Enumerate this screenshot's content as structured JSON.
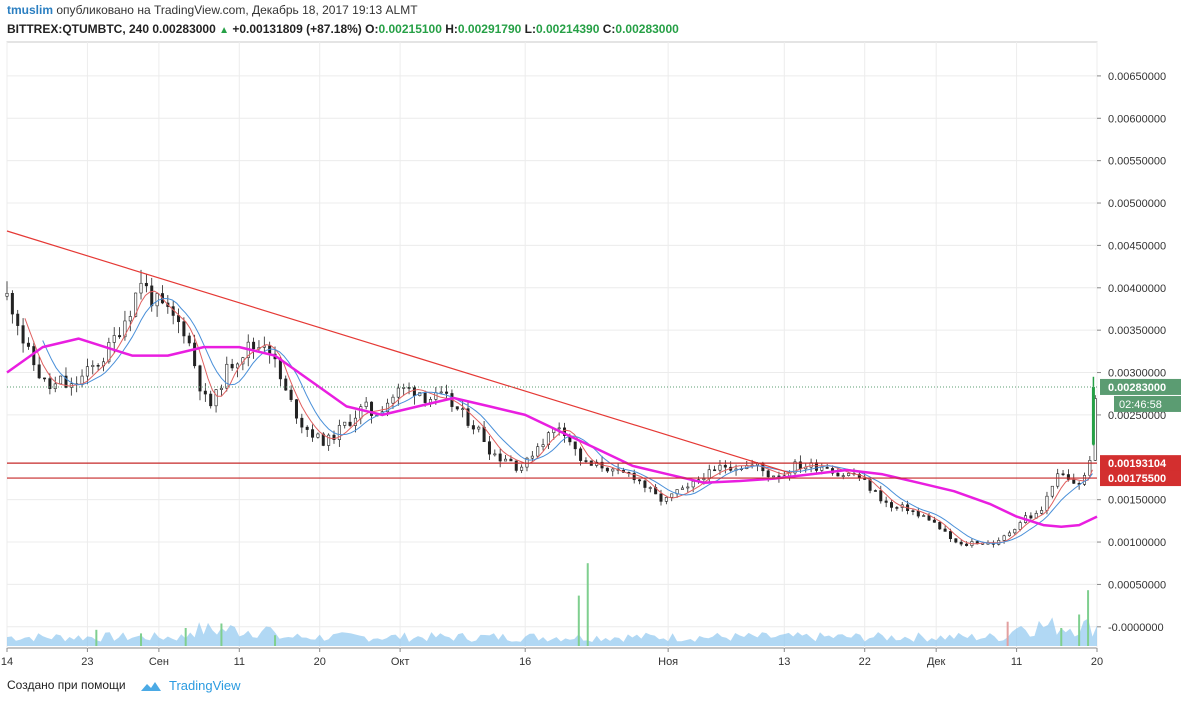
{
  "header": {
    "author": "tmuslim",
    "published_text": "опубликовано на TradingView.com, Декабрь 18, 2017 19:13 ALMT",
    "symbol": "BITTREX:QTUMBTC, 240",
    "last": "0.00283000",
    "change": "+0.00131809 (+87.18%)",
    "o_label": "O:",
    "o_value": "0.00215100",
    "h_label": "H:",
    "h_value": "0.00291790",
    "l_label": "L:",
    "l_value": "0.00214390",
    "c_label": "C:",
    "c_value": "0.00283000"
  },
  "footer": {
    "created_with": "Создано при помощи",
    "brand": "TradingView"
  },
  "colors": {
    "up": "#26a046",
    "trendline": "#e53935",
    "ma_long": "#e91ee0",
    "ma_short_red": "#e06060",
    "ma_short_blue": "#4a90d9",
    "level_line": "#c62828",
    "price_badge": "#5b9c72",
    "level_badge": "#d32f2f",
    "volume_area": "#90c8ef",
    "volume_up": "#7fcf8f",
    "volume_down": "#e3a0a0"
  },
  "chart_data": {
    "type": "candlestick",
    "y_tick_labels": [
      "0.00650000",
      "0.00600000",
      "0.00550000",
      "0.00500000",
      "0.00450000",
      "0.00400000",
      "0.00350000",
      "0.00300000",
      "0.00250000",
      "0.00150000",
      "0.00100000",
      "0.00050000",
      "-0.0000000"
    ],
    "y_ticks": [
      0.0065,
      0.006,
      0.0055,
      0.005,
      0.0045,
      0.004,
      0.0035,
      0.003,
      0.0025,
      0.0015,
      0.001,
      0.0005,
      0.0
    ],
    "ylim": [
      -0.00025,
      0.0069
    ],
    "x_tick_labels": [
      "14",
      "23",
      "Сен",
      "11",
      "20",
      "Окт",
      "16",
      "Ноя",
      "13",
      "22",
      "Дек",
      "11",
      "20"
    ],
    "x_tick_days": [
      0,
      9,
      17,
      26,
      35,
      44,
      58,
      74,
      87,
      96,
      104,
      113,
      122
    ],
    "x_range_days": [
      0,
      122
    ],
    "price_axis_labels": {
      "last_price": "0.00283000",
      "countdown": "02:46:58",
      "level_1": "0.00193104",
      "level_2": "0.00175500"
    },
    "last_price": 0.00283,
    "levels": [
      0.00193104,
      0.001755
    ],
    "trendline": {
      "start": [
        0,
        0.00467
      ],
      "end": [
        87.5,
        0.00182
      ]
    },
    "close_path_days": [
      0,
      1,
      2,
      3,
      4,
      5,
      6,
      7,
      8,
      9,
      10,
      11,
      12,
      13,
      14,
      15,
      16,
      17,
      18,
      19,
      20,
      21,
      22,
      23,
      24,
      25,
      26,
      27,
      28,
      29,
      30,
      31,
      32,
      33,
      34,
      35,
      36,
      37,
      38,
      39,
      40,
      41,
      42,
      43,
      44,
      45,
      46,
      47,
      48,
      49,
      50,
      51,
      52,
      53,
      54,
      55,
      56,
      57,
      58,
      59,
      60,
      61,
      62,
      63,
      64,
      65,
      66,
      67,
      68,
      69,
      70,
      71,
      72,
      73,
      74,
      75,
      76,
      77,
      78,
      79,
      80,
      81,
      82,
      83,
      84,
      85,
      86,
      87,
      88,
      89,
      90,
      91,
      92,
      93,
      94,
      95,
      96,
      97,
      98,
      99,
      100,
      101,
      102,
      103,
      104,
      105,
      106,
      107,
      108,
      109,
      110,
      111,
      112,
      113,
      114,
      115,
      116,
      117,
      118,
      119,
      120,
      121,
      122
    ],
    "close_path_values": [
      0.0039,
      0.0037,
      0.0033,
      0.0031,
      0.0029,
      0.0028,
      0.0029,
      0.0028,
      0.0029,
      0.003,
      0.0031,
      0.0032,
      0.0034,
      0.0036,
      0.0038,
      0.0041,
      0.0039,
      0.0038,
      0.0037,
      0.0036,
      0.0035,
      0.0031,
      0.0027,
      0.0026,
      0.0029,
      0.0031,
      0.0032,
      0.0033,
      0.0033,
      0.0034,
      0.0031,
      0.0028,
      0.0026,
      0.0024,
      0.0023,
      0.0022,
      0.0022,
      0.0023,
      0.0024,
      0.0025,
      0.0026,
      0.0025,
      0.0026,
      0.0027,
      0.0028,
      0.0028,
      0.0028,
      0.0027,
      0.0027,
      0.0027,
      0.0026,
      0.0025,
      0.0024,
      0.0023,
      0.0021,
      0.002,
      0.002,
      0.0019,
      0.0019,
      0.0021,
      0.0022,
      0.0023,
      0.0024,
      0.0022,
      0.002,
      0.0019,
      0.0019,
      0.0019,
      0.0018,
      0.0018,
      0.0018,
      0.0017,
      0.0016,
      0.0015,
      0.0015,
      0.0016,
      0.0016,
      0.0017,
      0.0018,
      0.0018,
      0.0019,
      0.0019,
      0.0019,
      0.0019,
      0.0019,
      0.0018,
      0.0018,
      0.0018,
      0.0019,
      0.0019,
      0.0019,
      0.0019,
      0.0019,
      0.0018,
      0.0018,
      0.0018,
      0.0017,
      0.0016,
      0.0015,
      0.0014,
      0.0014,
      0.0014,
      0.0013,
      0.0013,
      0.0012,
      0.0011,
      0.001,
      0.00095,
      0.001,
      0.001,
      0.00098,
      0.001,
      0.0011,
      0.0012,
      0.0013,
      0.0013,
      0.0014,
      0.0017,
      0.0018,
      0.0017,
      0.0017,
      0.0018,
      0.00283
    ],
    "ma_long_days": [
      0,
      4,
      8,
      14,
      18,
      22,
      26,
      30,
      34,
      38,
      42,
      46,
      50,
      54,
      58,
      62,
      66,
      70,
      74,
      78,
      82,
      86,
      90,
      94,
      98,
      102,
      106,
      110,
      113,
      116,
      118,
      120,
      122
    ],
    "ma_long_values": [
      0.003,
      0.0033,
      0.0034,
      0.0032,
      0.0032,
      0.0033,
      0.0033,
      0.0032,
      0.0029,
      0.0026,
      0.0025,
      0.0026,
      0.0027,
      0.0026,
      0.0025,
      0.0023,
      0.0021,
      0.0019,
      0.0018,
      0.0017,
      0.00172,
      0.00175,
      0.0018,
      0.00185,
      0.0018,
      0.0017,
      0.0016,
      0.00145,
      0.0013,
      0.0012,
      0.00118,
      0.0012,
      0.0013
    ],
    "volume_spikes": [
      {
        "day": 10,
        "h": 0.18
      },
      {
        "day": 15,
        "h": 0.14
      },
      {
        "day": 20,
        "h": 0.2
      },
      {
        "day": 24,
        "h": 0.25
      },
      {
        "day": 30,
        "h": 0.12
      },
      {
        "day": 64,
        "h": 0.56
      },
      {
        "day": 65,
        "h": 0.92
      },
      {
        "day": 112,
        "h": 0.27
      },
      {
        "day": 118,
        "h": 0.2
      },
      {
        "day": 120,
        "h": 0.35
      },
      {
        "day": 121,
        "h": 0.62
      }
    ]
  }
}
